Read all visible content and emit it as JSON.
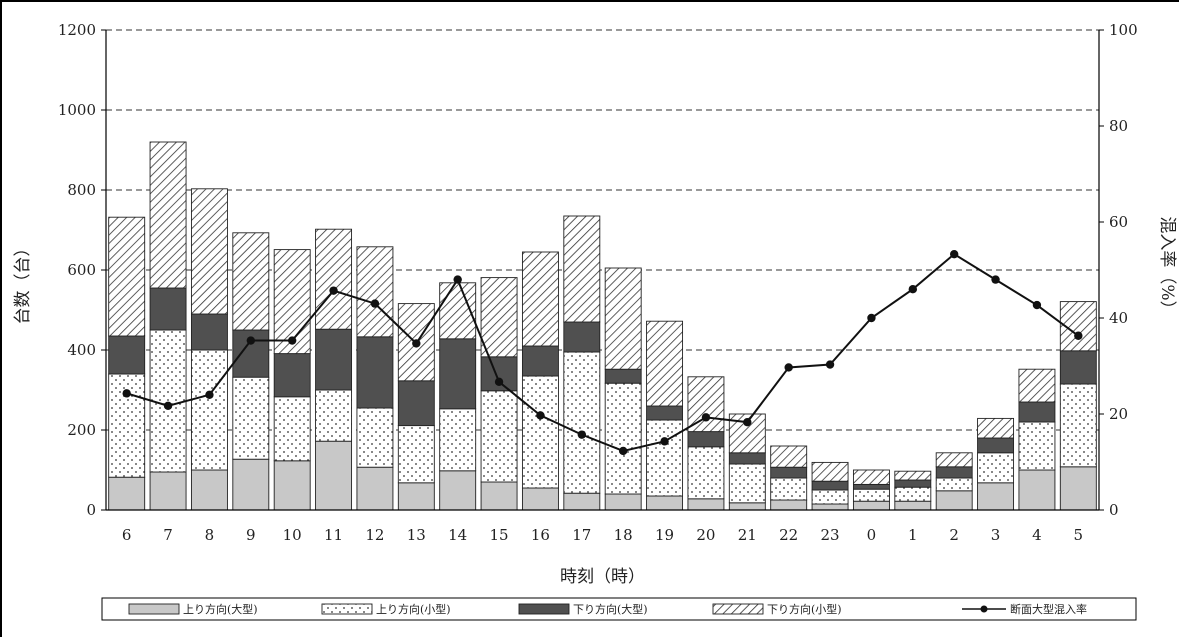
{
  "chart_data": {
    "type": "bar",
    "stacked": true,
    "xlabel": "時刻（時）",
    "ylabel_left": "台数（台）",
    "ylabel_right": "混入率（%）",
    "ylim_left": [
      0,
      1200
    ],
    "ylim_right": [
      0,
      100
    ],
    "yticks_left": [
      "0",
      "200",
      "400",
      "600",
      "800",
      "1000",
      "1200"
    ],
    "yticks_right": [
      "0",
      "20",
      "40",
      "60",
      "80",
      "100"
    ],
    "grid": "dashed horizontal",
    "legend_position": "bottom",
    "categories": [
      "6",
      "7",
      "8",
      "9",
      "10",
      "11",
      "12",
      "13",
      "14",
      "15",
      "16",
      "17",
      "18",
      "19",
      "20",
      "21",
      "22",
      "23",
      "0",
      "1",
      "2",
      "3",
      "4",
      "5"
    ],
    "series": [
      {
        "name": "上り方向(大型)",
        "pattern": "light-gray",
        "values": [
          82,
          95,
          100,
          127,
          123,
          172,
          107,
          68,
          98,
          70,
          55,
          42,
          40,
          35,
          28,
          18,
          25,
          15,
          22,
          22,
          48,
          68,
          100,
          108
        ]
      },
      {
        "name": "上り方向(小型)",
        "pattern": "dotted",
        "values": [
          258,
          355,
          300,
          205,
          160,
          128,
          148,
          143,
          155,
          228,
          280,
          353,
          277,
          190,
          130,
          97,
          55,
          35,
          30,
          35,
          32,
          75,
          120,
          207
        ]
      },
      {
        "name": "下り方向(大型)",
        "pattern": "dark-gray",
        "values": [
          95,
          105,
          90,
          118,
          108,
          152,
          178,
          112,
          175,
          85,
          75,
          75,
          35,
          35,
          38,
          28,
          27,
          22,
          12,
          18,
          28,
          37,
          50,
          83
        ]
      },
      {
        "name": "下り方向(小型)",
        "pattern": "hatched",
        "values": [
          297,
          365,
          313,
          243,
          260,
          250,
          225,
          193,
          140,
          198,
          235,
          265,
          253,
          212,
          137,
          97,
          53,
          47,
          36,
          22,
          35,
          49,
          82,
          123
        ]
      }
    ],
    "line_series": {
      "name": "断面大型混入率",
      "axis": "right",
      "values": [
        24.3,
        21.7,
        24,
        35.3,
        35.3,
        45.7,
        43,
        34.7,
        48,
        26.7,
        19.7,
        15.7,
        12.3,
        14.3,
        19.3,
        18.3,
        29.7,
        30.3,
        40,
        46,
        53.3,
        48,
        42.7,
        36.3
      ]
    },
    "colors": {
      "large_up": "#c8c8c8",
      "large_down": "#505050",
      "line": "#111111",
      "grid": "#333333"
    }
  }
}
